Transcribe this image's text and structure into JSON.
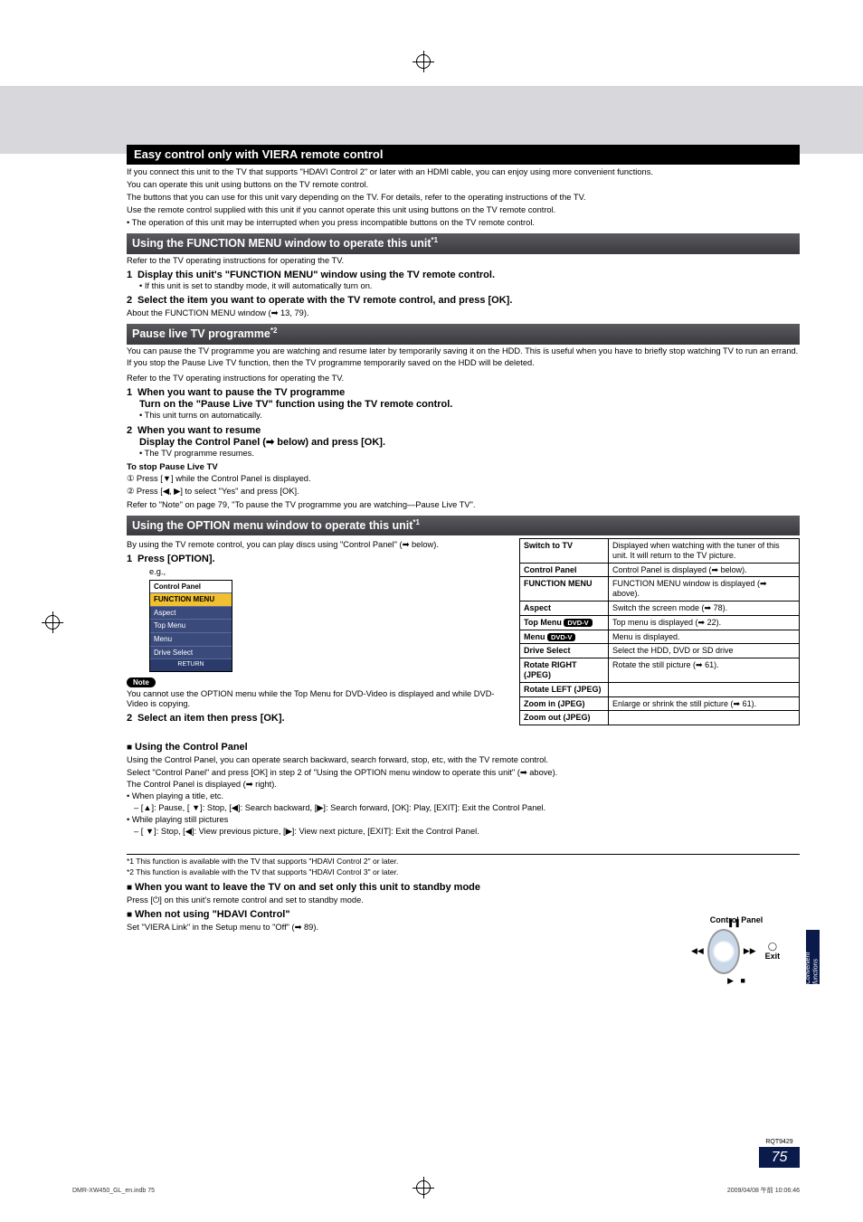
{
  "title_bar": "Easy control only with VIERA remote control",
  "intro": {
    "p1": "If you connect this unit to the TV that supports \"HDAVI Control 2\" or later with an HDMI cable, you can enjoy using more convenient functions.",
    "p2": "You can operate this unit using buttons on the TV remote control.",
    "p3": "The buttons that you can use for this unit vary depending on the TV. For details, refer to the operating instructions of the TV.",
    "p4": "Use the remote control supplied with this unit if you cannot operate this unit using buttons on the TV remote control.",
    "p5": "• The operation of this unit may be interrupted when you press incompatible buttons on the TV remote control."
  },
  "sec1": {
    "bar": "Using the FUNCTION MENU window to operate this unit",
    "sup": "*1",
    "p1": "Refer to the TV operating instructions for operating the TV.",
    "s1": "Display this unit's \"FUNCTION MENU\" window using the TV remote control.",
    "s1sub": "• If this unit is set to standby mode, it will automatically turn on.",
    "s2": "Select the item you want to operate with the TV remote control, and press [OK].",
    "s2sub": "About the FUNCTION MENU window (➡ 13, 79)."
  },
  "sec2": {
    "bar": "Pause live TV programme",
    "sup": "*2",
    "p1": "You can pause the TV programme you are watching and resume later by temporarily saving it on the HDD. This is useful when you have to briefly stop watching TV to run an errand.",
    "p2": "If you stop the Pause Live TV function, then the TV programme temporarily saved on the HDD will be deleted.",
    "p3": "Refer to the TV operating instructions for operating the TV.",
    "s1": "When you want to pause the TV programme",
    "s1b": "Turn on the \"Pause Live TV\" function using the TV remote control.",
    "s1sub": "• This unit turns on automatically.",
    "s2": "When you want to resume",
    "s2b": "Display the Control Panel (➡ below) and press [OK].",
    "s2sub": "• The TV programme resumes.",
    "stop_h": "To stop Pause Live TV",
    "stop1": "① Press [▼] while the Control Panel is displayed.",
    "stop2": "② Press [◀, ▶] to select \"Yes\" and press [OK].",
    "ref": "Refer to \"Note\" on page 79, \"To pause the TV programme you are watching—Pause Live TV\"."
  },
  "sec3": {
    "bar": "Using the OPTION menu window to operate this unit",
    "sup": "*1",
    "p1": "By using the TV remote control, you can play discs using \"Control Panel\" (➡ below).",
    "step1": "Press [OPTION].",
    "eg": "e.g.,",
    "menu_items": [
      "Control Panel",
      "FUNCTION MENU",
      "Aspect",
      "Top Menu",
      "Menu",
      "Drive Select"
    ],
    "menu_footer": "RETURN",
    "note": "Note",
    "note_p": "You cannot use the OPTION menu while the Top Menu for DVD-Video is displayed and while DVD-Video is copying.",
    "step2": "Select an item then press [OK]."
  },
  "table": [
    {
      "k": "Switch to TV",
      "v": "Displayed when watching with the tuner of this unit. It will return to the TV picture."
    },
    {
      "k": "Control Panel",
      "v": "Control Panel is displayed (➡ below)."
    },
    {
      "k": "FUNCTION MENU",
      "v": "FUNCTION MENU window is displayed (➡ above)."
    },
    {
      "k": "Aspect",
      "v": "Switch the screen mode (➡ 78)."
    },
    {
      "k": "Top Menu",
      "extra": "DVD-V",
      "v": "Top menu is displayed (➡ 22)."
    },
    {
      "k": "Menu",
      "extra": "DVD-V",
      "v": "Menu is displayed."
    },
    {
      "k": "Drive Select",
      "v": "Select the HDD, DVD or SD drive"
    },
    {
      "k": "Rotate RIGHT (JPEG)",
      "v": "Rotate the still picture (➡ 61)."
    },
    {
      "k": "Rotate LEFT (JPEG)",
      "v": ""
    },
    {
      "k": "Zoom in (JPEG)",
      "v": "Enlarge or shrink the still picture (➡ 61)."
    },
    {
      "k": "Zoom out (JPEG)",
      "v": ""
    }
  ],
  "cp": {
    "head": "Using the Control Panel",
    "p1": "Using the Control Panel, you can operate search backward, search forward, stop, etc, with the TV remote control.",
    "p2": "Select \"Control Panel\" and press [OK] in step 2 of \"Using the OPTION menu window to operate this unit\" (➡ above).",
    "p3": "The Control Panel is displayed (➡ right).",
    "p4a": "• When playing a title, etc.",
    "p4b": "– [▲]: Pause, [ ▼]: Stop, [◀]: Search backward, [▶]: Search forward, [OK]: Play, [EXIT]: Exit the Control Panel.",
    "p5a": "• While playing still pictures",
    "p5b": "– [ ▼]: Stop, [◀]: View previous picture, [▶]: View next picture, [EXIT]: Exit the Control Panel.",
    "fig_title": "Control Panel",
    "fig_exit": "Exit"
  },
  "foot": {
    "n1": "*1 This function is available with the TV that supports \"HDAVI Control 2\" or later.",
    "n2": "*2 This function is available with the TV that supports \"HDAVI Control 3\" or later.",
    "h1": "When you want to leave the TV on and set only this unit to standby mode",
    "h1p": "Press [⏻] on this unit's remote control and set to standby mode.",
    "h2": "When not using \"HDAVI Control\"",
    "h2p": "Set \"VIERA Link\" in the Setup menu to \"Off\" (➡ 89)."
  },
  "side_tab": "Convenient functions",
  "page_code": "RQT9429",
  "page_num": "75",
  "footer_left": "DMR-XW450_GL_en.indb   75",
  "footer_right": "2009/04/08   午前 10:06:46"
}
